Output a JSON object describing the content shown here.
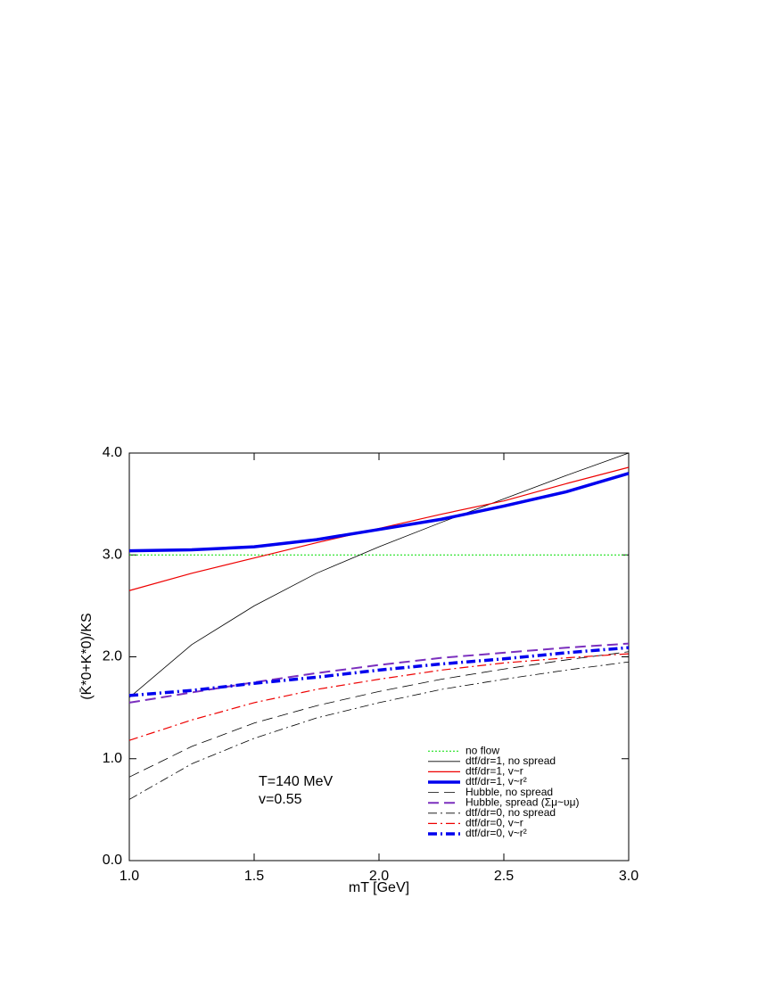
{
  "chart_data": {
    "type": "line",
    "xlabel": "mT [GeV]",
    "ylabel": "(K̄*0+K*0)/KS",
    "annotations": [
      "T=140 MeV",
      "v=0.55"
    ],
    "x": [
      1.0,
      1.25,
      1.5,
      1.75,
      2.0,
      2.25,
      2.5,
      2.75,
      3.0
    ],
    "xlim": [
      1.0,
      3.0
    ],
    "ylim": [
      0.0,
      4.0
    ],
    "xticks": [
      {
        "value": 1,
        "label": "1.0"
      },
      {
        "value": 1.5,
        "label": "1.5"
      },
      {
        "value": 2,
        "label": "2.0"
      },
      {
        "value": 2.5,
        "label": "2.5"
      },
      {
        "value": 3,
        "label": "3.0"
      }
    ],
    "yticks": [
      {
        "value": 0,
        "label": "0.0"
      },
      {
        "value": 1,
        "label": "1.0"
      },
      {
        "value": 2,
        "label": "2.0"
      },
      {
        "value": 3,
        "label": "3.0"
      },
      {
        "value": 4,
        "label": "4.0"
      }
    ],
    "legend": "lower right",
    "series": [
      {
        "name": "no flow",
        "color": "#00dd00",
        "style": "dotted",
        "width": 1,
        "values": [
          3.0,
          3.0,
          3.0,
          3.0,
          3.0,
          3.0,
          3.0,
          3.0,
          3.0
        ]
      },
      {
        "name": "dtf/dr=1, no spread",
        "color": "#000000",
        "style": "solid",
        "width": 0.8,
        "values": [
          1.6,
          2.12,
          2.5,
          2.82,
          3.08,
          3.32,
          3.55,
          3.78,
          4.0
        ]
      },
      {
        "name": "dtf/dr=1, v~r",
        "color": "#ee0000",
        "style": "solid",
        "width": 1.2,
        "values": [
          2.65,
          2.82,
          2.97,
          3.12,
          3.26,
          3.4,
          3.53,
          3.7,
          3.86
        ]
      },
      {
        "name": "dtf/dr=1, v~r²",
        "color": "#0000ee",
        "style": "solid",
        "width": 3.5,
        "values": [
          3.04,
          3.05,
          3.08,
          3.15,
          3.25,
          3.35,
          3.48,
          3.62,
          3.8
        ]
      },
      {
        "name": "Hubble, no spread",
        "color": "#000000",
        "style": "dashed",
        "width": 0.8,
        "values": [
          0.82,
          1.12,
          1.35,
          1.52,
          1.66,
          1.78,
          1.88,
          1.97,
          2.05
        ]
      },
      {
        "name": "Hubble, spread (Σμ~υμ)",
        "color": "#7b2fbe",
        "style": "dashed",
        "width": 2,
        "values": [
          1.55,
          1.65,
          1.75,
          1.84,
          1.92,
          1.99,
          2.04,
          2.09,
          2.13
        ]
      },
      {
        "name": "dtf/dr=0, no spread",
        "color": "#000000",
        "style": "dashdot",
        "width": 0.8,
        "values": [
          0.6,
          0.95,
          1.2,
          1.4,
          1.55,
          1.68,
          1.78,
          1.87,
          1.95
        ]
      },
      {
        "name": "dtf/dr=0, v~r",
        "color": "#ee0000",
        "style": "dashdot",
        "width": 1.2,
        "values": [
          1.18,
          1.38,
          1.55,
          1.68,
          1.78,
          1.87,
          1.94,
          1.99,
          2.03
        ]
      },
      {
        "name": "dtf/dr=0, v~r²",
        "color": "#0000ee",
        "style": "dashdot",
        "width": 3.5,
        "values": [
          1.62,
          1.67,
          1.74,
          1.8,
          1.87,
          1.93,
          1.98,
          2.04,
          2.09
        ]
      }
    ]
  }
}
